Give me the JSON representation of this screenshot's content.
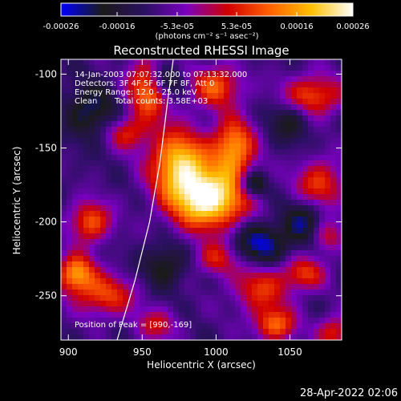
{
  "colorbar": {
    "ticks": [
      {
        "label": "-0.00026",
        "value": -0.00026
      },
      {
        "label": "-0.00016",
        "value": -0.00016
      },
      {
        "label": "-5.3e-05",
        "value": -5.3e-05
      },
      {
        "label": "5.3e-05",
        "value": 5.3e-05
      },
      {
        "label": "0.00016",
        "value": 0.00016
      },
      {
        "label": "0.00026",
        "value": 0.00026
      }
    ],
    "range": [
      -0.00026,
      0.00026
    ],
    "unit_label": "(photons cm⁻² s⁻¹ asec⁻²)",
    "colors": [
      "#0000ff",
      "#1a1a1a",
      "#2a1060",
      "#7a00c0",
      "#d00000",
      "#ff6000",
      "#ffc000",
      "#ffffff"
    ]
  },
  "chart_data": {
    "type": "heatmap",
    "title": "Reconstructed RHESSI Image",
    "xlabel": "Heliocentric X (arcsec)",
    "ylabel": "Heliocentric Y (arcsec)",
    "xlim": [
      895,
      1085
    ],
    "ylim": [
      -280,
      -90
    ],
    "xticks": [
      {
        "label": "900",
        "value": 900
      },
      {
        "label": "950",
        "value": 950
      },
      {
        "label": "1000",
        "value": 1000
      },
      {
        "label": "1050",
        "value": 1050
      }
    ],
    "yticks": [
      {
        "label": "-100",
        "value": -100
      },
      {
        "label": "-150",
        "value": -150
      },
      {
        "label": "-200",
        "value": -200
      },
      {
        "label": "-250",
        "value": -250
      }
    ],
    "annotations": {
      "time": "14-Jan-2003 07:07:32.000 to 07:13:32.000",
      "detectors": "Detectors: 3F 4F 5F 6F 7F 8F, Att 0",
      "energy": "Energy Range: 12.0 - 25.0 keV",
      "clean_label": "Clean",
      "counts": "Total counts: 3.58E+03",
      "peak": "Position of Peak = [990,-169]"
    },
    "peak": {
      "x": 990,
      "y": -169
    },
    "limb": [
      [
        933,
        -280
      ],
      [
        945,
        -240
      ],
      [
        955,
        -200
      ],
      [
        962,
        -160
      ],
      [
        967,
        -120
      ],
      [
        971,
        -90
      ]
    ],
    "sources": [
      {
        "x": 995,
        "y": -185,
        "sx": 18,
        "sy": 14,
        "a": 1.0
      },
      {
        "x": 975,
        "y": -160,
        "sx": 14,
        "sy": 16,
        "a": 0.8
      },
      {
        "x": 1012,
        "y": -150,
        "sx": 10,
        "sy": 14,
        "a": 0.7
      },
      {
        "x": 955,
        "y": -110,
        "sx": 10,
        "sy": 14,
        "a": 0.7
      },
      {
        "x": 1000,
        "y": -108,
        "sx": 12,
        "sy": 10,
        "a": 0.55
      },
      {
        "x": 1065,
        "y": -115,
        "sx": 15,
        "sy": 10,
        "a": 0.55
      },
      {
        "x": 915,
        "y": -200,
        "sx": 10,
        "sy": 10,
        "a": 0.55
      },
      {
        "x": 1070,
        "y": -175,
        "sx": 12,
        "sy": 12,
        "a": 0.5
      },
      {
        "x": 905,
        "y": -235,
        "sx": 9,
        "sy": 9,
        "a": 0.7
      },
      {
        "x": 925,
        "y": -250,
        "sx": 14,
        "sy": 10,
        "a": 0.5
      },
      {
        "x": 1030,
        "y": -245,
        "sx": 14,
        "sy": 12,
        "a": 0.45
      },
      {
        "x": 1060,
        "y": -235,
        "sx": 10,
        "sy": 8,
        "a": 0.45
      },
      {
        "x": 1040,
        "y": -270,
        "sx": 10,
        "sy": 8,
        "a": 0.55
      },
      {
        "x": 1080,
        "y": -275,
        "sx": 8,
        "sy": 8,
        "a": 0.45
      },
      {
        "x": 1075,
        "y": -210,
        "sx": 8,
        "sy": 8,
        "a": 0.4
      },
      {
        "x": 960,
        "y": -270,
        "sx": 10,
        "sy": 8,
        "a": 0.35
      },
      {
        "x": 940,
        "y": -140,
        "sx": 10,
        "sy": 8,
        "a": 0.4
      },
      {
        "x": 1000,
        "y": -225,
        "sx": 10,
        "sy": 8,
        "a": 0.4
      },
      {
        "x": 965,
        "y": -105,
        "sx": 8,
        "sy": 8,
        "a": -0.5
      },
      {
        "x": 1030,
        "y": -215,
        "sx": 12,
        "sy": 10,
        "a": -0.45
      },
      {
        "x": 1060,
        "y": -200,
        "sx": 10,
        "sy": 12,
        "a": -0.35
      },
      {
        "x": 1050,
        "y": -130,
        "sx": 10,
        "sy": 10,
        "a": -0.3
      },
      {
        "x": 915,
        "y": -125,
        "sx": 12,
        "sy": 12,
        "a": -0.35
      },
      {
        "x": 1025,
        "y": -175,
        "sx": 6,
        "sy": 6,
        "a": -0.5
      },
      {
        "x": 965,
        "y": -230,
        "sx": 10,
        "sy": 10,
        "a": -0.3
      }
    ]
  },
  "footer": {
    "timestamp": "28-Apr-2022 02:06"
  }
}
